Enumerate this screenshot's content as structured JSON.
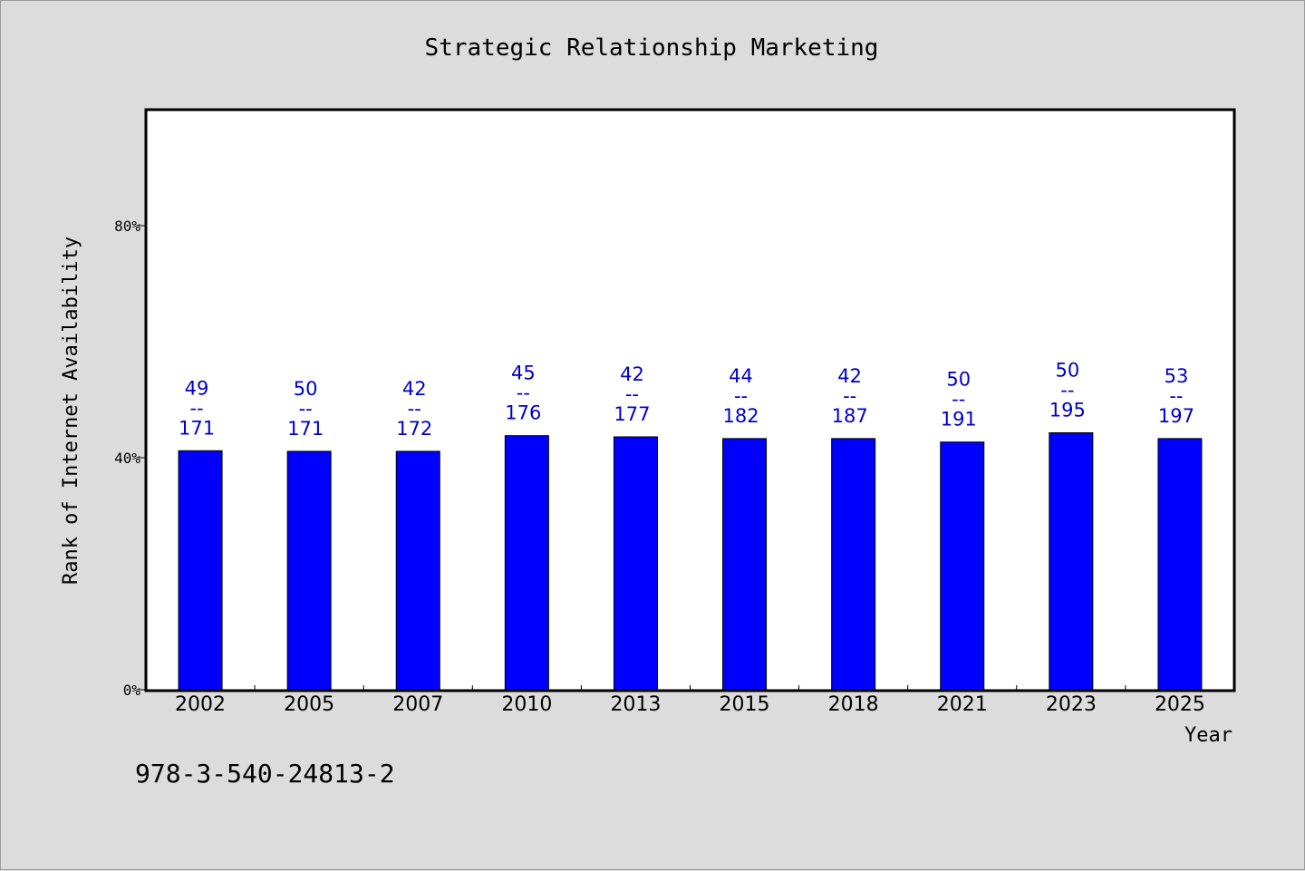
{
  "chart_data": {
    "type": "bar",
    "title": "Strategic Relationship Marketing",
    "xlabel": "Year",
    "ylabel": "Rank of Internet Availability",
    "categories": [
      "2002",
      "2005",
      "2007",
      "2010",
      "2013",
      "2015",
      "2018",
      "2021",
      "2023",
      "2025"
    ],
    "values": [
      41.2,
      41.1,
      41.1,
      43.8,
      43.6,
      43.3,
      43.3,
      42.7,
      44.3,
      43.3
    ],
    "data_labels": [
      {
        "top": "49",
        "sep": "--",
        "bottom": "171"
      },
      {
        "top": "50",
        "sep": "--",
        "bottom": "171"
      },
      {
        "top": "42",
        "sep": "--",
        "bottom": "172"
      },
      {
        "top": "45",
        "sep": "--",
        "bottom": "176"
      },
      {
        "top": "42",
        "sep": "--",
        "bottom": "177"
      },
      {
        "top": "44",
        "sep": "--",
        "bottom": "182"
      },
      {
        "top": "42",
        "sep": "--",
        "bottom": "187"
      },
      {
        "top": "50",
        "sep": "--",
        "bottom": "191"
      },
      {
        "top": "50",
        "sep": "--",
        "bottom": "195"
      },
      {
        "top": "53",
        "sep": "--",
        "bottom": "197"
      }
    ],
    "y_ticks": [
      {
        "value": 0,
        "label": "0%"
      },
      {
        "value": 40,
        "label": "40%"
      },
      {
        "value": 80,
        "label": "80%"
      }
    ],
    "ylim": [
      0,
      100
    ],
    "grid": false,
    "legend": "none",
    "bar_color": "#0000ff",
    "label_color": "#0000cc"
  },
  "footer": {
    "isbn": "978-3-540-24813-2"
  }
}
